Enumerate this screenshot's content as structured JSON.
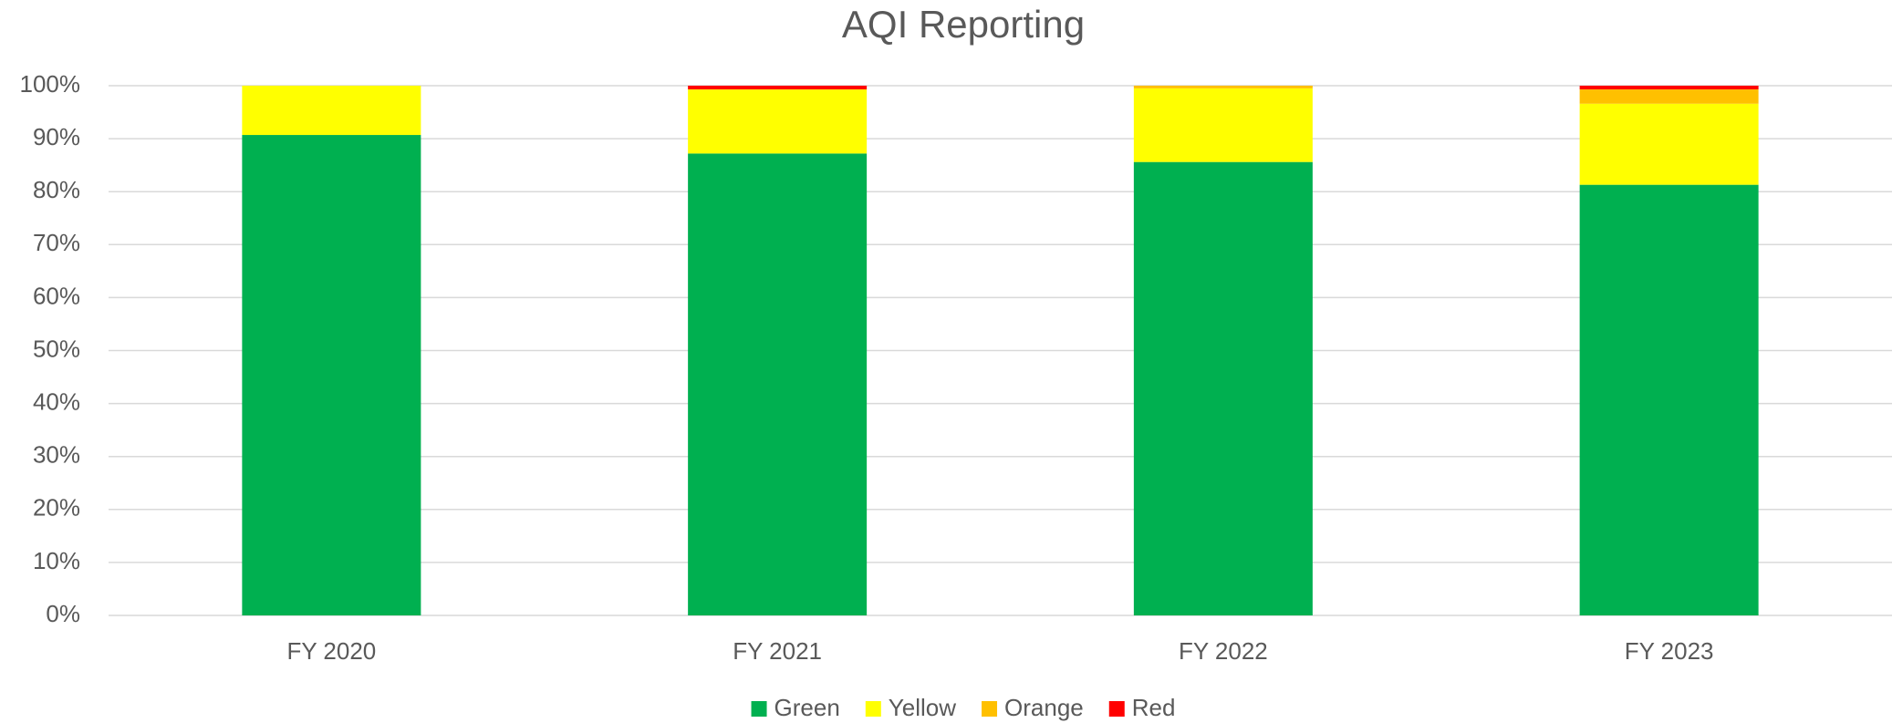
{
  "chart_data": {
    "type": "stacked_bar",
    "title": "AQI Reporting",
    "categories": [
      "FY 2020",
      "FY 2021",
      "FY 2022",
      "FY 2023"
    ],
    "series": [
      {
        "name": "Green",
        "color": "#00b050",
        "values": [
          90.7,
          87.2,
          85.6,
          81.3
        ]
      },
      {
        "name": "Yellow",
        "color": "#ffff00",
        "values": [
          9.3,
          12.1,
          13.9,
          15.3
        ]
      },
      {
        "name": "Orange",
        "color": "#ffc000",
        "values": [
          0,
          0,
          0.5,
          2.7
        ]
      },
      {
        "name": "Red",
        "color": "#ff0000",
        "values": [
          0,
          0.7,
          0,
          0.7
        ]
      }
    ],
    "ylim": [
      0,
      100
    ],
    "yticks": [
      {
        "value": 0,
        "label": "0%"
      },
      {
        "value": 10,
        "label": "10%"
      },
      {
        "value": 20,
        "label": "20%"
      },
      {
        "value": 30,
        "label": "30%"
      },
      {
        "value": 40,
        "label": "40%"
      },
      {
        "value": 50,
        "label": "50%"
      },
      {
        "value": 60,
        "label": "60%"
      },
      {
        "value": 70,
        "label": "70%"
      },
      {
        "value": 80,
        "label": "80%"
      },
      {
        "value": 90,
        "label": "90%"
      },
      {
        "value": 100,
        "label": "100%"
      }
    ],
    "grid": true,
    "legend": "bottom"
  }
}
